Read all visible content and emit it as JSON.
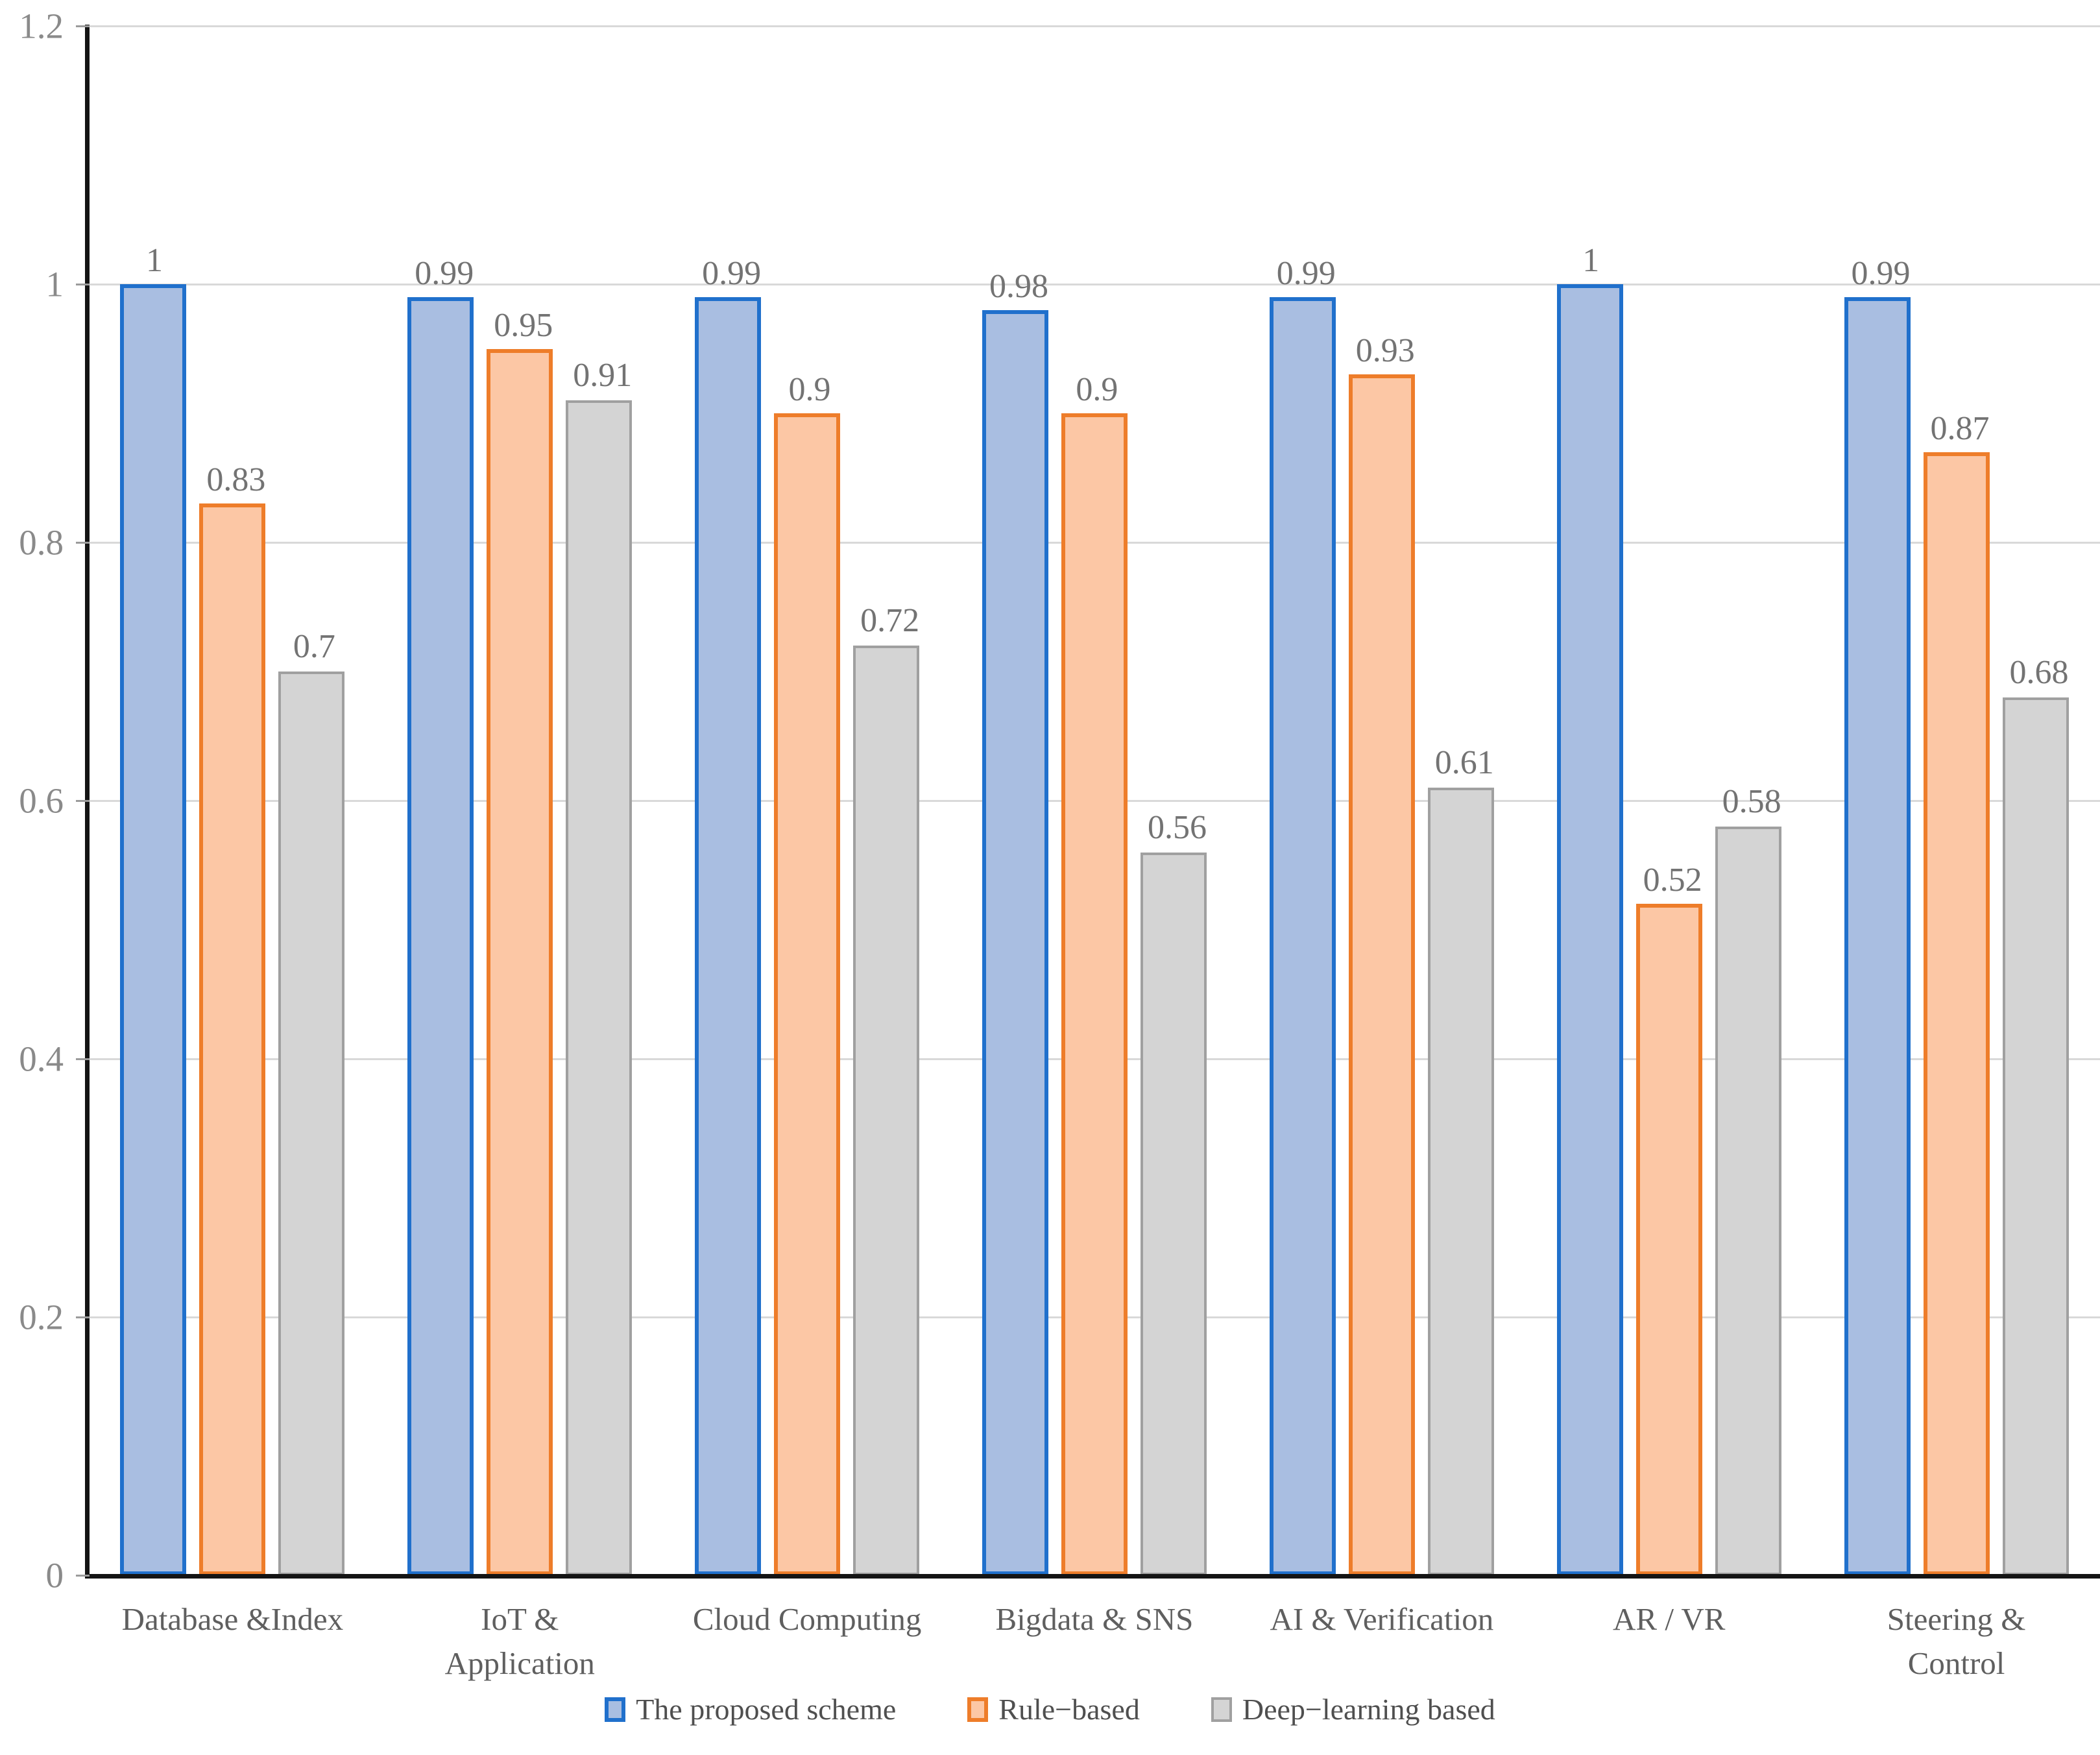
{
  "chart_data": {
    "type": "bar",
    "categories": [
      "Database &Index",
      "IoT &\nApplication",
      "Cloud Computing",
      "Bigdata & SNS",
      "AI & Verification",
      "AR / VR",
      "Steering &\nControl"
    ],
    "series": [
      {
        "name": "The proposed scheme",
        "values": [
          1,
          0.99,
          0.99,
          0.98,
          0.99,
          1,
          0.99
        ],
        "fill": "#a9bee1",
        "border": "#2070cc",
        "border_px": 6
      },
      {
        "name": "Rule−based",
        "values": [
          0.83,
          0.95,
          0.9,
          0.9,
          0.93,
          0.52,
          0.87
        ],
        "fill": "#fcc7a5",
        "border": "#ee7d2a",
        "border_px": 6
      },
      {
        "name": "Deep−learning based",
        "values": [
          0.7,
          0.91,
          0.72,
          0.56,
          0.61,
          0.58,
          0.68
        ],
        "fill": "#d4d4d4",
        "border": "#a0a0a0",
        "border_px": 4
      }
    ],
    "value_labels": [
      [
        "1",
        "0.99",
        "0.99",
        "0.98",
        "0.99",
        "1",
        "0.99"
      ],
      [
        "0.83",
        "0.95",
        "0.9",
        "0.9",
        "0.93",
        "0.52",
        "0.87"
      ],
      [
        "0.7",
        "0.91",
        "0.72",
        "0.56",
        "0.61",
        "0.58",
        "0.68"
      ]
    ],
    "ylim": [
      0,
      1.2
    ],
    "yticks": [
      0,
      0.2,
      0.4,
      0.6,
      0.8,
      1,
      1.2
    ],
    "ytick_labels": [
      "0",
      "0.2",
      "0.4",
      "0.6",
      "0.8",
      "1",
      "1.2"
    ],
    "grid": true,
    "legend_position": "bottom",
    "colors": {
      "gridline": "#d9d9d9",
      "axis": "#141414",
      "tick_text": "#8a8a8a",
      "value_label_text": "#737373",
      "category_text": "#5f5f5f",
      "legend_text": "#4f4f4f"
    }
  }
}
